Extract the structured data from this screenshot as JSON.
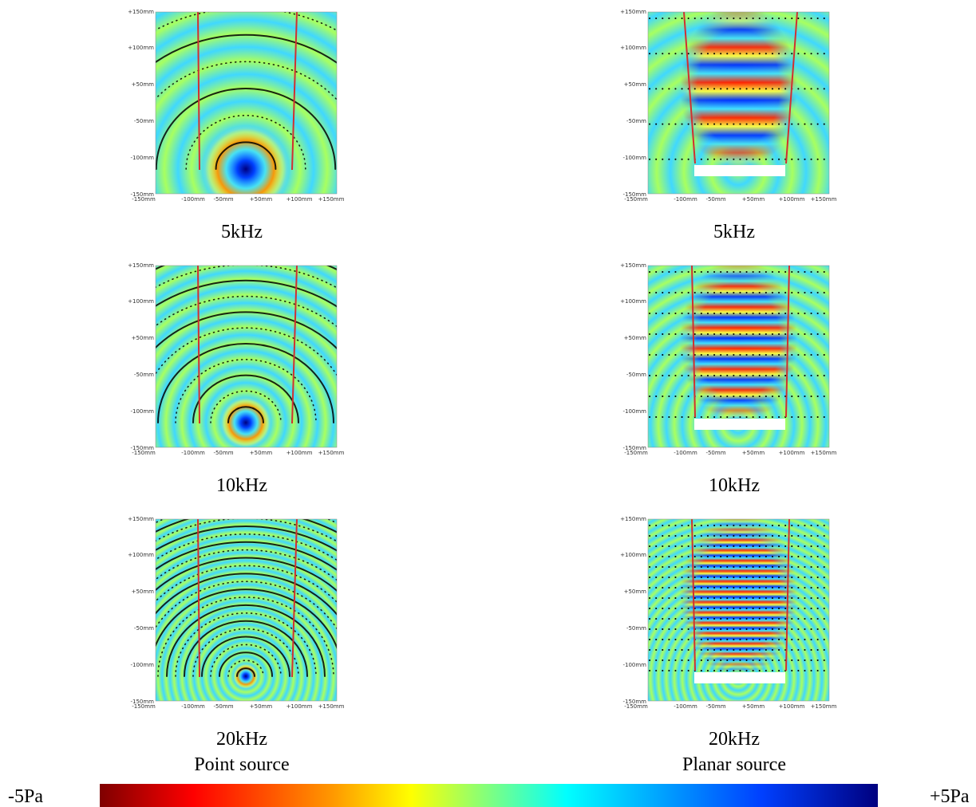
{
  "axis_labels": {
    "y": [
      "+150mm",
      "+100mm",
      "+50mm",
      "-50mm",
      "-100mm",
      "-150mm"
    ],
    "x": [
      "-150mm",
      "-100mm",
      "-50mm",
      "+50mm",
      "+100mm",
      "+150mm"
    ]
  },
  "columns": [
    {
      "label": "Point source",
      "panels": [
        "5kHz",
        "10kHz",
        "20kHz"
      ]
    },
    {
      "label": "Planar source",
      "panels": [
        "5kHz",
        "10kHz",
        "20kHz"
      ]
    }
  ],
  "colorbar": {
    "min_label": "-5Pa",
    "max_label": "+5Pa"
  }
}
